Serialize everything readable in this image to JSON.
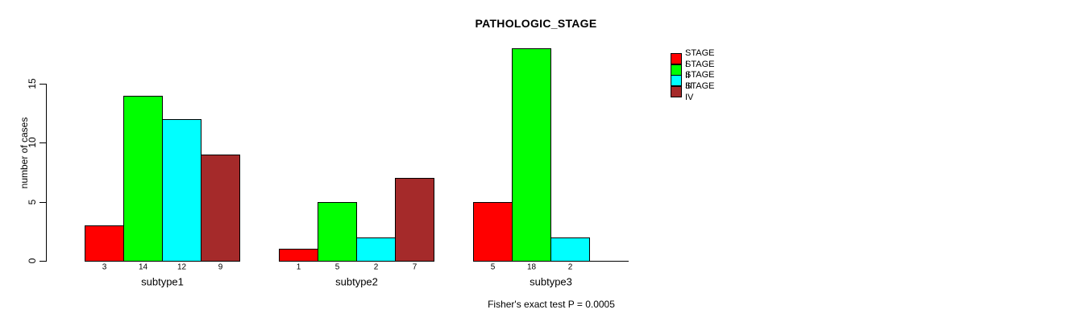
{
  "figure": {
    "background": "#FFFFFF",
    "text_color": "#000000",
    "axis_color": "#000000"
  },
  "chart_data": {
    "type": "bar",
    "title": "PATHOLOGIC_STAGE",
    "ylabel": "number of cases",
    "xlabel": "",
    "categories": [
      "subtype1",
      "subtype2",
      "subtype3"
    ],
    "series": [
      {
        "name": "STAGE I",
        "color": "#FF0000",
        "values": [
          3,
          1,
          5
        ]
      },
      {
        "name": "STAGE II",
        "color": "#00FF00",
        "values": [
          14,
          5,
          18
        ]
      },
      {
        "name": "STAGE III",
        "color": "#00FFFF",
        "values": [
          12,
          2,
          2
        ]
      },
      {
        "name": "STAGE IV",
        "color": "#A52A2A",
        "values": [
          9,
          7,
          0
        ]
      }
    ],
    "bar_value_labels": [
      [
        "3",
        "14",
        "12",
        "9"
      ],
      [
        "1",
        "5",
        "2",
        "7"
      ],
      [
        "5",
        "18",
        "2",
        ""
      ]
    ],
    "yticks": [
      0,
      5,
      10,
      15
    ],
    "ylim": [
      0,
      18
    ],
    "grid": false,
    "legend_position": "right",
    "annotation": "Fisher's exact test P = 0.0005"
  }
}
